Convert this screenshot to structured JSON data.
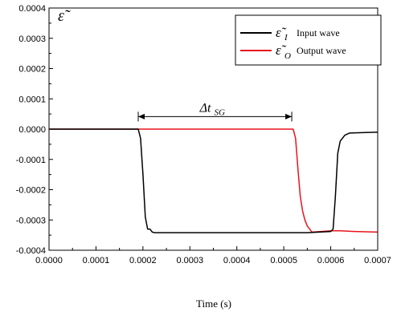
{
  "chart_data": {
    "type": "line",
    "xlabel": "Time (s)",
    "ylabel": "ε̃",
    "xlim": [
      0.0,
      0.0007
    ],
    "ylim": [
      -0.0004,
      0.0004
    ],
    "xticks": [
      0.0,
      0.0001,
      0.0002,
      0.0003,
      0.0004,
      0.0005,
      0.0006,
      0.0007
    ],
    "xtick_labels": [
      "0.0000",
      "0.0001",
      "0.0002",
      "0.0003",
      "0.0004",
      "0.0005",
      "0.0006",
      "0.0007"
    ],
    "yticks": [
      -0.0004,
      -0.0003,
      -0.0002,
      -0.0001,
      0.0,
      0.0001,
      0.0002,
      0.0003,
      0.0004
    ],
    "ytick_labels": [
      "-0.0004",
      "-0.0003",
      "-0.0002",
      "-0.0001",
      "0.0000",
      "0.0001",
      "0.0002",
      "0.0003",
      "0.0004"
    ],
    "grid": false,
    "legend_position": "top-right",
    "series": [
      {
        "name": "Input wave",
        "symbol": "ε̃",
        "subscript": "I",
        "color": "#000000",
        "x": [
          0.0,
          0.00015,
          0.00019,
          0.000195,
          0.0002,
          0.000205,
          0.00021,
          0.000215,
          0.00022,
          0.000225,
          0.00023,
          0.0003,
          0.0004,
          0.0005,
          0.00055,
          0.0006,
          0.000605,
          0.00061,
          0.000615,
          0.00062,
          0.00063,
          0.00064,
          0.0007
        ],
        "y": [
          0.0,
          0.0,
          0.0,
          -3e-05,
          -0.00015,
          -0.00029,
          -0.00033,
          -0.00033,
          -0.00034,
          -0.000342,
          -0.000342,
          -0.000342,
          -0.000342,
          -0.000342,
          -0.000342,
          -0.000338,
          -0.00033,
          -0.00022,
          -8e-05,
          -4e-05,
          -2e-05,
          -1.3e-05,
          -1e-05
        ]
      },
      {
        "name": "Output wave",
        "symbol": "ε̃",
        "subscript": "O",
        "color": "#e8141e",
        "x": [
          0.0,
          0.0002,
          0.0003,
          0.0004,
          0.0005,
          0.00052,
          0.000525,
          0.00053,
          0.000535,
          0.00054,
          0.000545,
          0.00055,
          0.000555,
          0.00056,
          0.00058,
          0.0006,
          0.00062,
          0.00065,
          0.0007
        ],
        "y": [
          0.0,
          0.0,
          0.0,
          0.0,
          0.0,
          0.0,
          -3e-05,
          -0.00013,
          -0.00022,
          -0.00027,
          -0.0003,
          -0.00032,
          -0.00033,
          -0.00034,
          -0.000338,
          -0.000336,
          -0.000336,
          -0.000338,
          -0.00034
        ]
      }
    ],
    "annotation": {
      "main": "Δt",
      "sub": "SG",
      "x_start": 0.00019,
      "x_end": 0.000517,
      "y": 1.5e-05
    }
  }
}
